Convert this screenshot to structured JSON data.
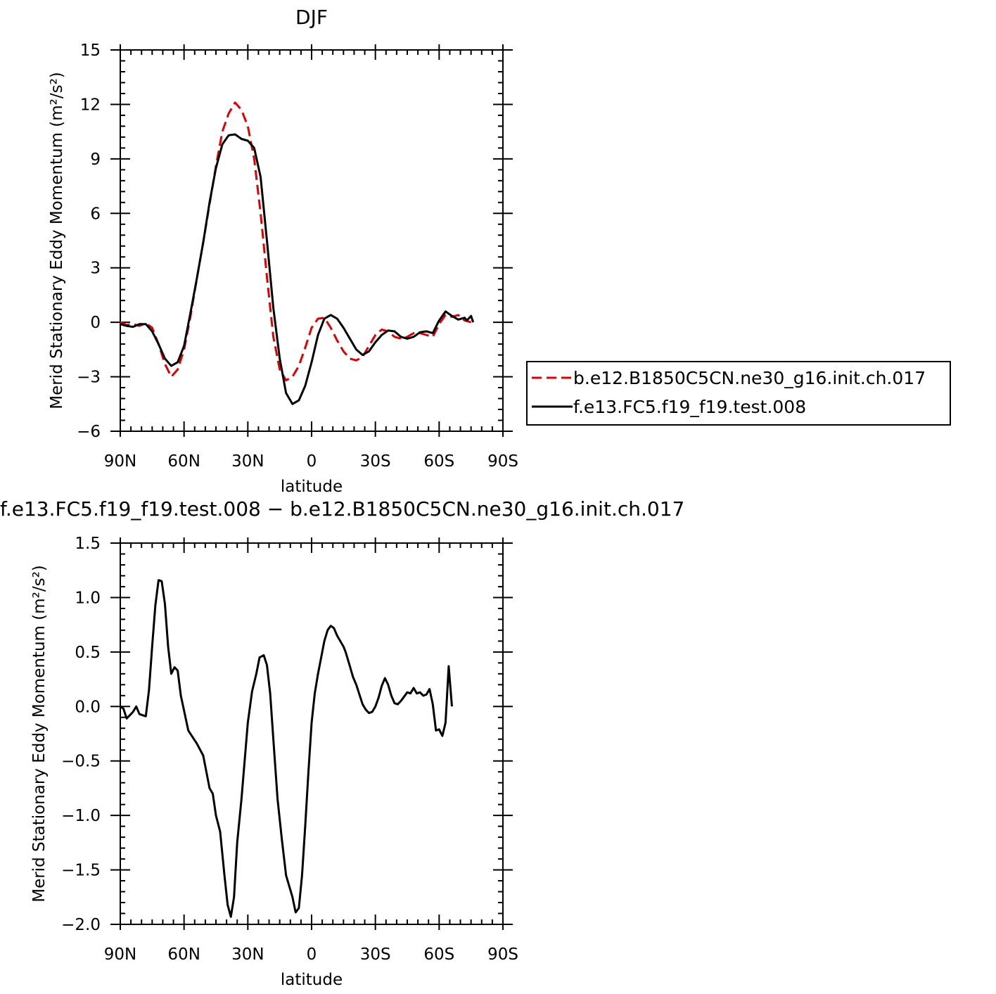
{
  "chart_data": [
    {
      "type": "line",
      "title": "DJF",
      "xlabel": "latitude",
      "ylabel": "Merid Stationary Eddy Momentum (m²/s²)",
      "xlim": [
        -90,
        90
      ],
      "ylim": [
        -6,
        15
      ],
      "x_ticks": [
        -90,
        -60,
        -30,
        0,
        30,
        60,
        90
      ],
      "x_tick_labels": [
        "90N",
        "60N",
        "30N",
        "0",
        "30S",
        "60S",
        "90S"
      ],
      "y_ticks": [
        -6,
        -3,
        0,
        3,
        6,
        9,
        12,
        15
      ],
      "y_tick_labels": [
        "−6",
        "−3",
        "0",
        "3",
        "6",
        "9",
        "12",
        "15"
      ],
      "legend": "right",
      "series": [
        {
          "name": "b.e12.B1850C5CN.ne30_g16.init.ch.017",
          "color": "#e00000",
          "dash": "dashed",
          "points": [
            [
              -90,
              0
            ],
            [
              -87,
              -0.15
            ],
            [
              -84,
              -0.1
            ],
            [
              -81,
              -0.2
            ],
            [
              -78,
              -0.05
            ],
            [
              -75,
              -0.3
            ],
            [
              -72,
              -1.2
            ],
            [
              -69,
              -2.3
            ],
            [
              -66,
              -3.0
            ],
            [
              -63,
              -2.6
            ],
            [
              -60,
              -1.5
            ],
            [
              -57,
              0.3
            ],
            [
              -54,
              2.4
            ],
            [
              -51,
              4.4
            ],
            [
              -48,
              6.5
            ],
            [
              -45,
              8.6
            ],
            [
              -42,
              10.5
            ],
            [
              -39,
              11.5
            ],
            [
              -36,
              12.1
            ],
            [
              -33,
              11.7
            ],
            [
              -30,
              10.8
            ],
            [
              -27,
              9.0
            ],
            [
              -24,
              6.0
            ],
            [
              -21,
              2.5
            ],
            [
              -18,
              -0.8
            ],
            [
              -15,
              -2.6
            ],
            [
              -12,
              -3.2
            ],
            [
              -9,
              -3.0
            ],
            [
              -6,
              -2.4
            ],
            [
              -3,
              -1.4
            ],
            [
              0,
              -0.3
            ],
            [
              3,
              0.2
            ],
            [
              6,
              0.25
            ],
            [
              9,
              -0.3
            ],
            [
              12,
              -1.0
            ],
            [
              15,
              -1.6
            ],
            [
              18,
              -2.0
            ],
            [
              21,
              -2.1
            ],
            [
              24,
              -1.9
            ],
            [
              27,
              -1.3
            ],
            [
              30,
              -0.7
            ],
            [
              33,
              -0.4
            ],
            [
              36,
              -0.5
            ],
            [
              39,
              -0.8
            ],
            [
              42,
              -0.9
            ],
            [
              45,
              -0.8
            ],
            [
              48,
              -0.6
            ],
            [
              51,
              -0.6
            ],
            [
              54,
              -0.7
            ],
            [
              57,
              -0.8
            ],
            [
              60,
              -0.1
            ],
            [
              63,
              0.4
            ],
            [
              66,
              0.3
            ],
            [
              69,
              0.4
            ],
            [
              72,
              0.1
            ],
            [
              75,
              0.0
            ]
          ]
        },
        {
          "name": "f.e13.FC5.f19_f19.test.008",
          "color": "#000000",
          "dash": "solid",
          "points": [
            [
              -90,
              -0.1
            ],
            [
              -87,
              -0.2
            ],
            [
              -84,
              -0.25
            ],
            [
              -81,
              -0.1
            ],
            [
              -78,
              -0.1
            ],
            [
              -75,
              -0.5
            ],
            [
              -72,
              -1.2
            ],
            [
              -69,
              -2.0
            ],
            [
              -66,
              -2.4
            ],
            [
              -63,
              -2.2
            ],
            [
              -60,
              -1.3
            ],
            [
              -57,
              0.5
            ],
            [
              -54,
              2.4
            ],
            [
              -51,
              4.4
            ],
            [
              -48,
              6.6
            ],
            [
              -45,
              8.5
            ],
            [
              -42,
              9.8
            ],
            [
              -39,
              10.3
            ],
            [
              -36,
              10.35
            ],
            [
              -33,
              10.1
            ],
            [
              -30,
              10.0
            ],
            [
              -27,
              9.6
            ],
            [
              -24,
              8.0
            ],
            [
              -21,
              4.5
            ],
            [
              -18,
              0.8
            ],
            [
              -15,
              -2.0
            ],
            [
              -12,
              -3.9
            ],
            [
              -9,
              -4.5
            ],
            [
              -6,
              -4.3
            ],
            [
              -3,
              -3.5
            ],
            [
              0,
              -2.2
            ],
            [
              3,
              -0.7
            ],
            [
              6,
              0.2
            ],
            [
              9,
              0.4
            ],
            [
              12,
              0.2
            ],
            [
              15,
              -0.3
            ],
            [
              18,
              -0.9
            ],
            [
              21,
              -1.5
            ],
            [
              24,
              -1.8
            ],
            [
              27,
              -1.6
            ],
            [
              30,
              -1.1
            ],
            [
              33,
              -0.7
            ],
            [
              36,
              -0.45
            ],
            [
              39,
              -0.5
            ],
            [
              42,
              -0.8
            ],
            [
              45,
              -0.9
            ],
            [
              48,
              -0.8
            ],
            [
              51,
              -0.55
            ],
            [
              54,
              -0.5
            ],
            [
              57,
              -0.6
            ],
            [
              60,
              0.1
            ],
            [
              63,
              0.6
            ],
            [
              66,
              0.35
            ],
            [
              69,
              0.15
            ],
            [
              72,
              0.25
            ],
            [
              73,
              0.1
            ],
            [
              75,
              0.35
            ],
            [
              76,
              0.0
            ]
          ]
        }
      ]
    },
    {
      "type": "line",
      "title": "f.e13.FC5.f19_f19.test.008 − b.e12.B1850C5CN.ne30_g16.init.ch.017",
      "xlabel": "latitude",
      "ylabel": "Merid Stationary Eddy Momentum (m²/s²)",
      "xlim": [
        -90,
        90
      ],
      "ylim": [
        -2.0,
        1.5
      ],
      "x_ticks": [
        -90,
        -60,
        -30,
        0,
        30,
        60,
        90
      ],
      "x_tick_labels": [
        "90N",
        "60N",
        "30N",
        "0",
        "30S",
        "60S",
        "90S"
      ],
      "y_ticks": [
        -2.0,
        -1.5,
        -1.0,
        -0.5,
        0.0,
        0.5,
        1.0,
        1.5
      ],
      "y_tick_labels": [
        "−2.0",
        "−1.5",
        "−1.0",
        "−0.5",
        "0.0",
        "0.5",
        "1.0",
        "1.5"
      ],
      "series": [
        {
          "color": "#000000",
          "dash": "solid",
          "points": [
            [
              -90,
              0.0
            ],
            [
              -88.5,
              -0.02
            ],
            [
              -87,
              -0.11
            ],
            [
              -85.5,
              -0.08
            ],
            [
              -84,
              -0.05
            ],
            [
              -82.5,
              0.0
            ],
            [
              -81,
              -0.07
            ],
            [
              -79.5,
              -0.08
            ],
            [
              -78,
              -0.09
            ],
            [
              -76.5,
              0.15
            ],
            [
              -75,
              0.55
            ],
            [
              -73.5,
              0.93
            ],
            [
              -72,
              1.16
            ],
            [
              -70.5,
              1.15
            ],
            [
              -69,
              0.94
            ],
            [
              -67.5,
              0.55
            ],
            [
              -66,
              0.3
            ],
            [
              -64.5,
              0.36
            ],
            [
              -63,
              0.33
            ],
            [
              -61.5,
              0.1
            ],
            [
              -58,
              -0.22
            ],
            [
              -54,
              -0.34
            ],
            [
              -51,
              -0.45
            ],
            [
              -48,
              -0.75
            ],
            [
              -46.5,
              -0.8
            ],
            [
              -45,
              -1.0
            ],
            [
              -43,
              -1.15
            ],
            [
              -41,
              -1.55
            ],
            [
              -39.5,
              -1.82
            ],
            [
              -38,
              -1.93
            ],
            [
              -36.5,
              -1.75
            ],
            [
              -35,
              -1.25
            ],
            [
              -33,
              -0.85
            ],
            [
              -30,
              -0.15
            ],
            [
              -28,
              0.14
            ],
            [
              -26,
              0.3
            ],
            [
              -24.5,
              0.45
            ],
            [
              -22.5,
              0.47
            ],
            [
              -21,
              0.38
            ],
            [
              -19.5,
              0.12
            ],
            [
              -18,
              -0.3
            ],
            [
              -16,
              -0.85
            ],
            [
              -14,
              -1.22
            ],
            [
              -12,
              -1.55
            ],
            [
              -9,
              -1.75
            ],
            [
              -7.5,
              -1.89
            ],
            [
              -6,
              -1.85
            ],
            [
              -4.5,
              -1.55
            ],
            [
              -3,
              -1.1
            ],
            [
              -1.5,
              -0.6
            ],
            [
              0,
              -0.15
            ],
            [
              1.5,
              0.12
            ],
            [
              3,
              0.3
            ],
            [
              4.5,
              0.45
            ],
            [
              6,
              0.6
            ],
            [
              7.5,
              0.7
            ],
            [
              9,
              0.74
            ],
            [
              10.5,
              0.72
            ],
            [
              12,
              0.65
            ],
            [
              15,
              0.55
            ],
            [
              16,
              0.5
            ],
            [
              18,
              0.37
            ],
            [
              19.5,
              0.27
            ],
            [
              21,
              0.2
            ],
            [
              22.5,
              0.11
            ],
            [
              24,
              0.02
            ],
            [
              25.5,
              -0.03
            ],
            [
              27,
              -0.06
            ],
            [
              28.5,
              -0.05
            ],
            [
              30,
              0.0
            ],
            [
              31.5,
              0.08
            ],
            [
              33,
              0.19
            ],
            [
              34.5,
              0.26
            ],
            [
              36,
              0.2
            ],
            [
              37.5,
              0.1
            ],
            [
              39,
              0.03
            ],
            [
              40.5,
              0.02
            ],
            [
              42,
              0.05
            ],
            [
              43.5,
              0.09
            ],
            [
              45,
              0.13
            ],
            [
              46.5,
              0.12
            ],
            [
              48,
              0.17
            ],
            [
              49.5,
              0.12
            ],
            [
              51,
              0.13
            ],
            [
              52.5,
              0.1
            ],
            [
              54,
              0.11
            ],
            [
              55.5,
              0.16
            ],
            [
              57,
              0.02
            ],
            [
              58.5,
              -0.22
            ],
            [
              60,
              -0.21
            ],
            [
              61.5,
              -0.27
            ],
            [
              63,
              -0.15
            ],
            [
              64.5,
              0.37
            ],
            [
              66,
              0.0
            ]
          ]
        }
      ]
    }
  ]
}
